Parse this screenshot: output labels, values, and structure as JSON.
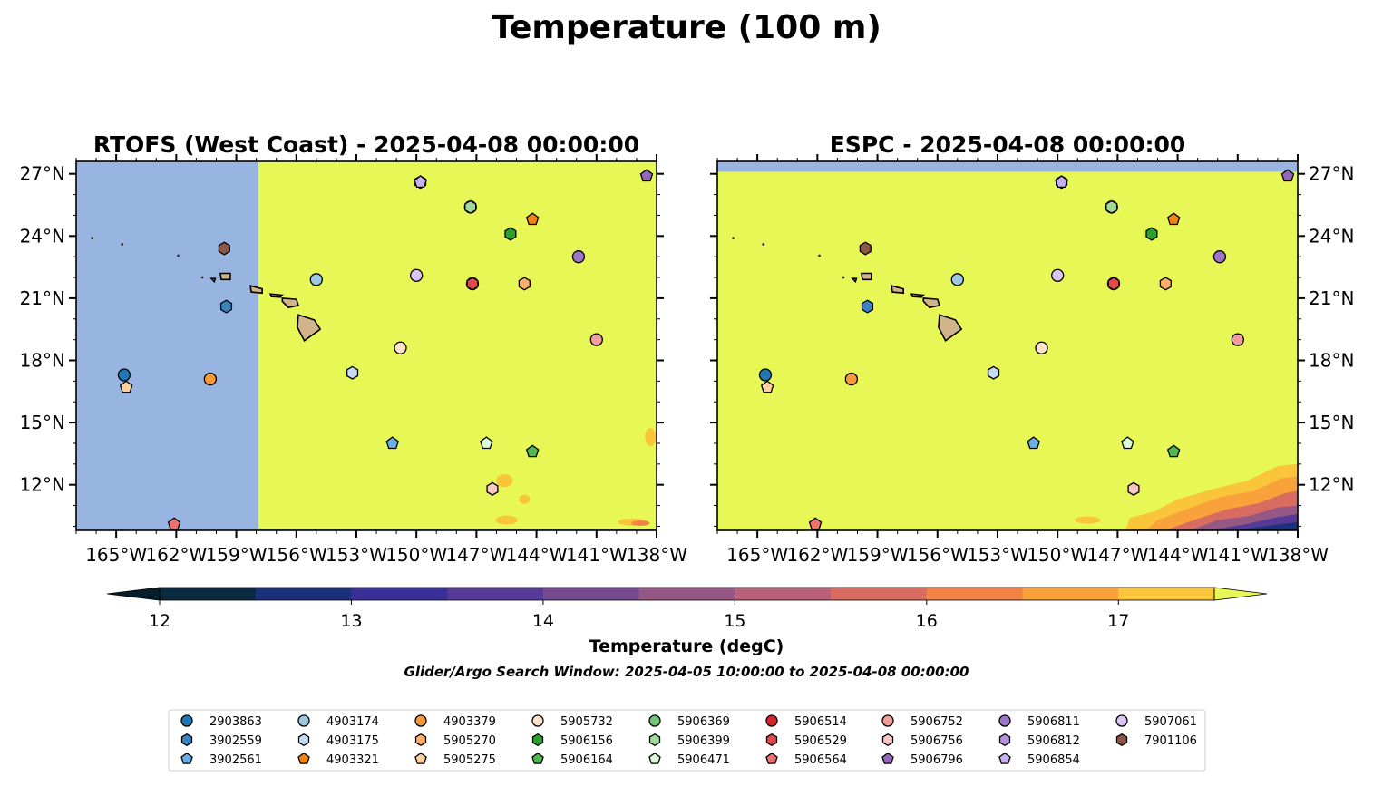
{
  "figure": {
    "suptitle": "Temperature (100 m)",
    "colorbar_label": "Temperature (degC)",
    "search_window": "Glider/Argo Search Window: 2025-04-05 10:00:00 to 2025-04-08 00:00:00"
  },
  "colors": {
    "land": "#d2b48c",
    "missing_data": "#97b5e0",
    "warm_plateau": "#e6f756",
    "colormap": [
      "#092a3f",
      "#1b317a",
      "#3a2f96",
      "#553a96",
      "#764a8e",
      "#955885",
      "#b7627a",
      "#d96c61",
      "#f18346",
      "#f9a13a",
      "#fac43b"
    ]
  },
  "chart_data": [
    {
      "type": "map",
      "title": "RTOFS (West Coast) - 2025-04-08 00:00:00",
      "lon_range": [
        -167,
        -138
      ],
      "lat_range": [
        9.8,
        27.6
      ],
      "lon_ticks": [
        "165°W",
        "162°W",
        "159°W",
        "156°W",
        "153°W",
        "150°W",
        "147°W",
        "144°W",
        "141°W",
        "138°W"
      ],
      "lat_ticks": [
        "27°N",
        "24°N",
        "21°N",
        "18°N",
        "15°N",
        "12°N"
      ],
      "no_data_west_of_lon": -157.9
    },
    {
      "type": "map",
      "title": "ESPC - 2025-04-08 00:00:00",
      "lon_range": [
        -167,
        -138
      ],
      "lat_range": [
        9.8,
        27.6
      ],
      "lon_ticks": [
        "165°W",
        "162°W",
        "159°W",
        "156°W",
        "153°W",
        "150°W",
        "147°W",
        "144°W",
        "141°W",
        "138°W"
      ],
      "lat_ticks": [
        "27°N",
        "24°N",
        "21°N",
        "18°N",
        "15°N",
        "12°N"
      ],
      "no_data_north_of_lat": 27.1
    },
    {
      "type": "colorbar",
      "range": [
        11.5,
        17.5
      ],
      "levels": [
        12.0,
        12.5,
        13.0,
        13.5,
        14.0,
        14.5,
        15.0,
        15.5,
        16.0,
        16.5,
        17.0,
        17.5
      ],
      "ticks": [
        12,
        13,
        14,
        15,
        16,
        17
      ],
      "extend": "both"
    }
  ],
  "floats": [
    {
      "id": "2903863",
      "lon": -164.6,
      "lat": 17.3,
      "marker": "circle",
      "color": "#1f77b4"
    },
    {
      "id": "3902559",
      "lon": -159.5,
      "lat": 20.6,
      "marker": "hexagon",
      "color": "#3a84c0"
    },
    {
      "id": "3902561",
      "lon": -151.2,
      "lat": 14.0,
      "marker": "pentagon",
      "color": "#6aaee6"
    },
    {
      "id": "4903174",
      "lon": -155.0,
      "lat": 21.9,
      "marker": "circle",
      "color": "#9ecae1"
    },
    {
      "id": "4903175",
      "lon": -153.2,
      "lat": 17.4,
      "marker": "hexagon",
      "color": "#c6dbef"
    },
    {
      "id": "4903321",
      "lon": -144.2,
      "lat": 24.8,
      "marker": "pentagon",
      "color": "#f28311"
    },
    {
      "id": "4903379",
      "lon": -160.3,
      "lat": 17.1,
      "marker": "circle",
      "color": "#f99a3a"
    },
    {
      "id": "5905270",
      "lon": -144.6,
      "lat": 21.7,
      "marker": "hexagon",
      "color": "#fdae6b"
    },
    {
      "id": "5905275",
      "lon": -164.5,
      "lat": 16.7,
      "marker": "pentagon",
      "color": "#fdd0a2"
    },
    {
      "id": "5905732",
      "lon": -150.8,
      "lat": 18.6,
      "marker": "circle",
      "color": "#fde3cb"
    },
    {
      "id": "5906156",
      "lon": -145.3,
      "lat": 24.1,
      "marker": "hexagon",
      "color": "#2ca02c"
    },
    {
      "id": "5906164",
      "lon": -144.2,
      "lat": 13.6,
      "marker": "pentagon",
      "color": "#4fb84f"
    },
    {
      "id": "5906369",
      "lon": -147.3,
      "lat": 25.4,
      "marker": "circle",
      "color": "#74c476"
    },
    {
      "id": "5906399",
      "lon": -147.3,
      "lat": 25.4,
      "marker": "hexagon",
      "color": "#a1d99b"
    },
    {
      "id": "5906471",
      "lon": -146.5,
      "lat": 14.0,
      "marker": "pentagon",
      "color": "#dcfcd8"
    },
    {
      "id": "5906514",
      "lon": -147.2,
      "lat": 21.7,
      "marker": "circle",
      "color": "#d62728"
    },
    {
      "id": "5906529",
      "lon": -147.2,
      "lat": 21.7,
      "marker": "hexagon",
      "color": "#e04a4a"
    },
    {
      "id": "5906564",
      "lon": -162.1,
      "lat": 10.1,
      "marker": "pentagon",
      "color": "#ee7070"
    },
    {
      "id": "5906752",
      "lon": -141.0,
      "lat": 19.0,
      "marker": "circle",
      "color": "#f39c9c"
    },
    {
      "id": "5906756",
      "lon": -146.2,
      "lat": 11.8,
      "marker": "hexagon",
      "color": "#fbc6c6"
    },
    {
      "id": "5906796",
      "lon": -138.5,
      "lat": 26.9,
      "marker": "pentagon",
      "color": "#9467bd"
    },
    {
      "id": "5906811",
      "lon": -141.9,
      "lat": 23.0,
      "marker": "circle",
      "color": "#9d75c7"
    },
    {
      "id": "5906812",
      "lon": -149.8,
      "lat": 26.6,
      "marker": "hexagon",
      "color": "#b391dd"
    },
    {
      "id": "5906854",
      "lon": -149.8,
      "lat": 26.6,
      "marker": "pentagon",
      "color": "#c9b0ee"
    },
    {
      "id": "5907061",
      "lon": -150.0,
      "lat": 22.1,
      "marker": "circle",
      "color": "#dcc4f5"
    },
    {
      "id": "7901106",
      "lon": -159.6,
      "lat": 23.4,
      "marker": "hexagon",
      "color": "#8c564b"
    }
  ]
}
